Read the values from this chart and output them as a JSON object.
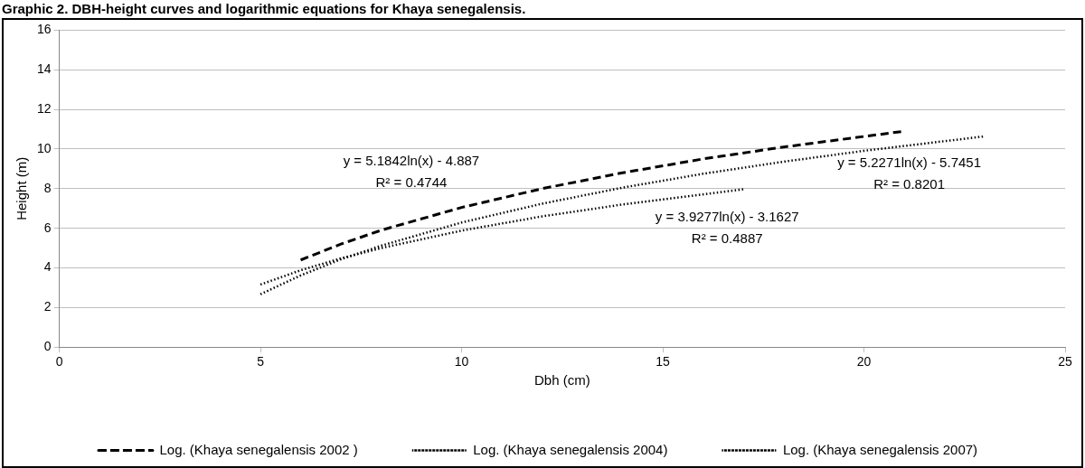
{
  "chart_data": {
    "type": "line",
    "title": "Graphic 2. DBH-height curves and logarithmic equations for Khaya senegalensis.",
    "xlabel": "Dbh (cm)",
    "ylabel": "Height (m)",
    "xlim": [
      0,
      25
    ],
    "xticks": [
      0,
      5,
      10,
      15,
      20,
      25
    ],
    "ylim": [
      0,
      16
    ],
    "yticks": [
      0,
      2,
      4,
      6,
      8,
      10,
      12,
      14,
      16
    ],
    "grid": "y",
    "legend": "bottom",
    "marker": "none",
    "series": [
      {
        "name": "Log. (Khaya senegalensis 2002 )",
        "color": "#000000",
        "line_style": "dashed",
        "x": [
          6,
          7,
          8,
          10,
          12,
          14,
          16,
          18,
          21
        ],
        "values": [
          4.4,
          5.2,
          5.9,
          7.05,
          8.0,
          8.8,
          9.5,
          10.1,
          10.9
        ]
      },
      {
        "name": "Log. (Khaya senegalensis 2004)",
        "color": "#000000",
        "line_style": "dotted",
        "x": [
          5,
          6,
          7,
          8,
          10,
          12,
          14,
          16,
          18,
          20,
          23
        ],
        "values": [
          2.67,
          3.62,
          4.43,
          5.12,
          6.29,
          7.24,
          8.05,
          8.75,
          9.36,
          9.91,
          10.64
        ]
      },
      {
        "name": "Log. (Khaya senegalensis 2007)",
        "color": "#000000",
        "line_style": "dotted",
        "x": [
          5,
          6,
          7,
          8,
          10,
          12,
          14,
          17
        ],
        "values": [
          3.16,
          3.88,
          4.48,
          5.0,
          5.88,
          6.6,
          7.2,
          7.97
        ]
      }
    ],
    "annotations": [
      "y = 5.1842ln(x) - 4.887\nR² = 0.4744",
      "y = 5.2271ln(x) - 5.7451\nR² = 0.8201",
      "y = 3.9277ln(x) - 3.1627\nR² = 0.4887"
    ]
  }
}
